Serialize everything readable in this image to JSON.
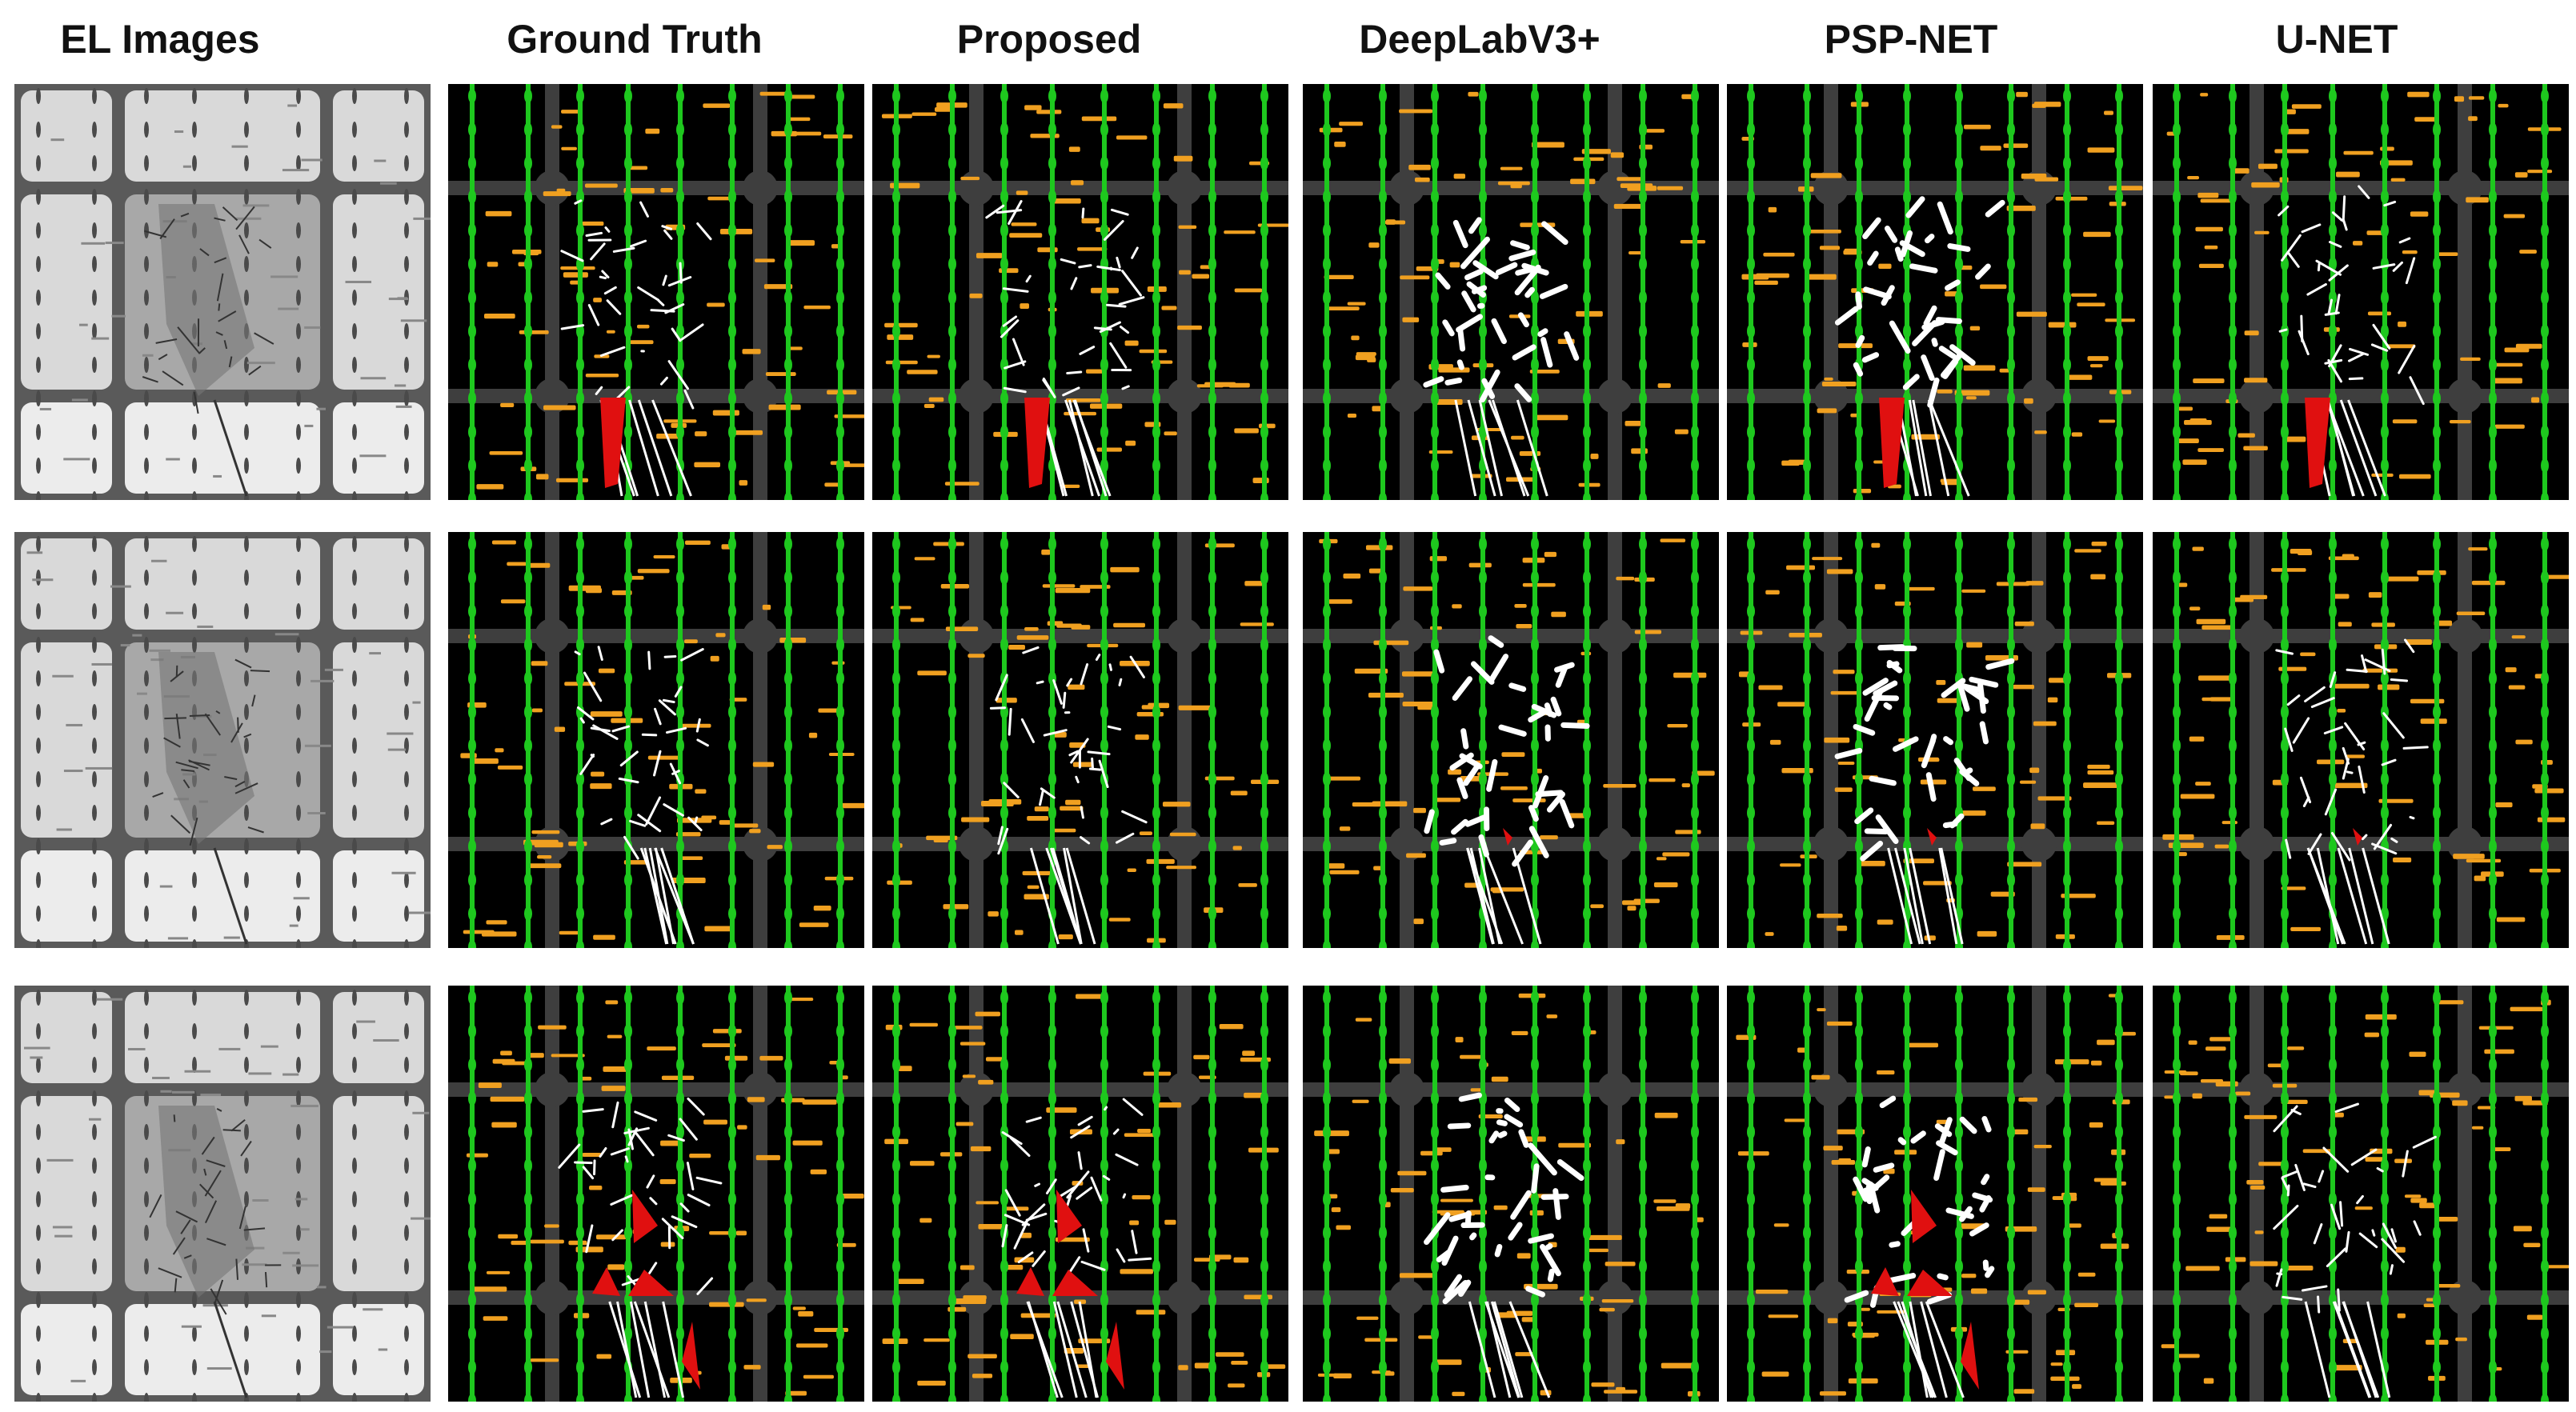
{
  "columns": [
    {
      "label": "EL Images",
      "kind": "el"
    },
    {
      "label": "Ground Truth",
      "kind": "mask"
    },
    {
      "label": "Proposed",
      "kind": "mask"
    },
    {
      "label": "DeepLabV3+",
      "kind": "mask"
    },
    {
      "label": "PSP-NET",
      "kind": "mask"
    },
    {
      "label": "U-NET",
      "kind": "mask"
    }
  ],
  "rows": 3,
  "colors": {
    "background": "#ffffff",
    "mask_background": "#000000",
    "cell_border": "#3e3e3e",
    "busbar": "#1ec81e",
    "finger_defect": "#f0a020",
    "crack": "#ffffff",
    "dark_region": "#e01010",
    "el_cell": "#d9d9d9",
    "el_gap": "#5a5a5a",
    "el_crack": "#333333"
  }
}
